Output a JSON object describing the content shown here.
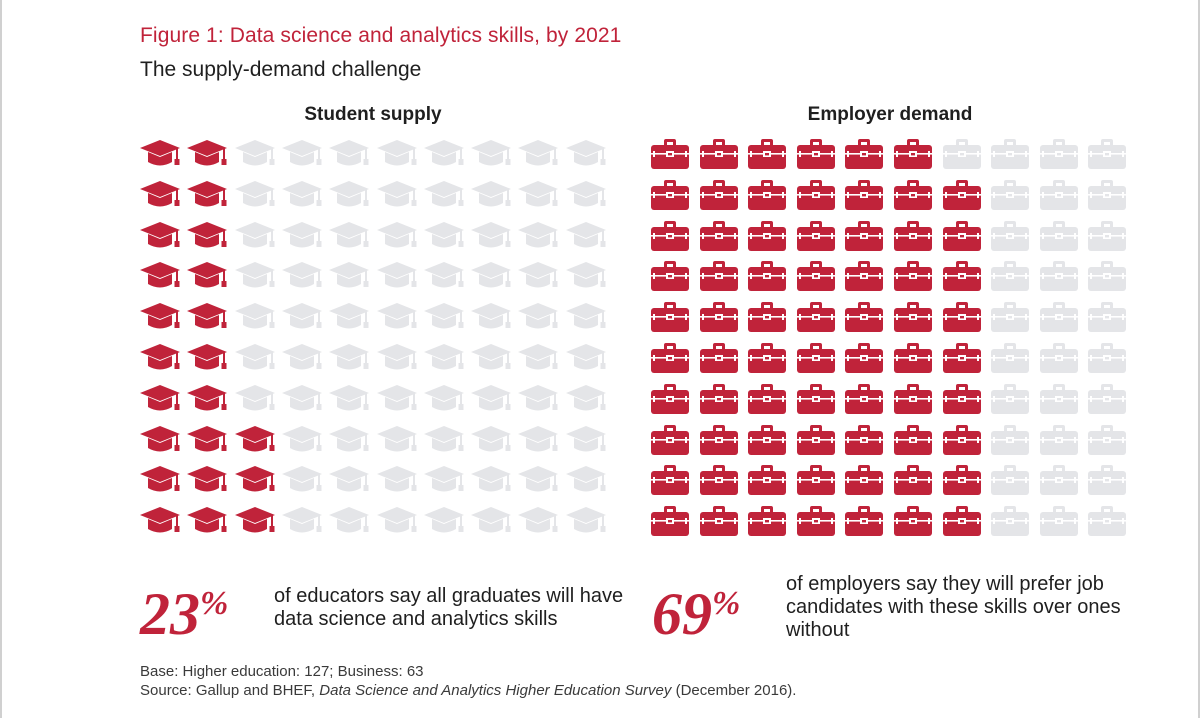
{
  "figure": {
    "title": "Figure 1: Data science and analytics skills, by 2021",
    "subtitle": "The supply-demand challenge"
  },
  "colors": {
    "accent": "#c0233a",
    "inactive": "#e4e5e8",
    "text": "#1f1f1f"
  },
  "chart_data": [
    {
      "type": "pictogram",
      "title": "Student supply",
      "icon": "graduation-cap-icon",
      "total_icons": 100,
      "filled_icons": 23,
      "value_percent": 23,
      "percent_label": "23%",
      "statement": "of educators say all graduates will have data science and analytics skills"
    },
    {
      "type": "pictogram",
      "title": "Employer demand",
      "icon": "briefcase-icon",
      "total_icons": 100,
      "filled_icons": 69,
      "value_percent": 69,
      "percent_label": "69%",
      "statement": "of employers say they will prefer job candidates with these skills over ones without"
    }
  ],
  "footer": {
    "base": "Base: Higher education: 127; Business: 63",
    "source_prefix": "Source: Gallup and BHEF, ",
    "source_title": "Data Science and Analytics Higher Education Survey",
    "source_suffix": " (December 2016)."
  }
}
